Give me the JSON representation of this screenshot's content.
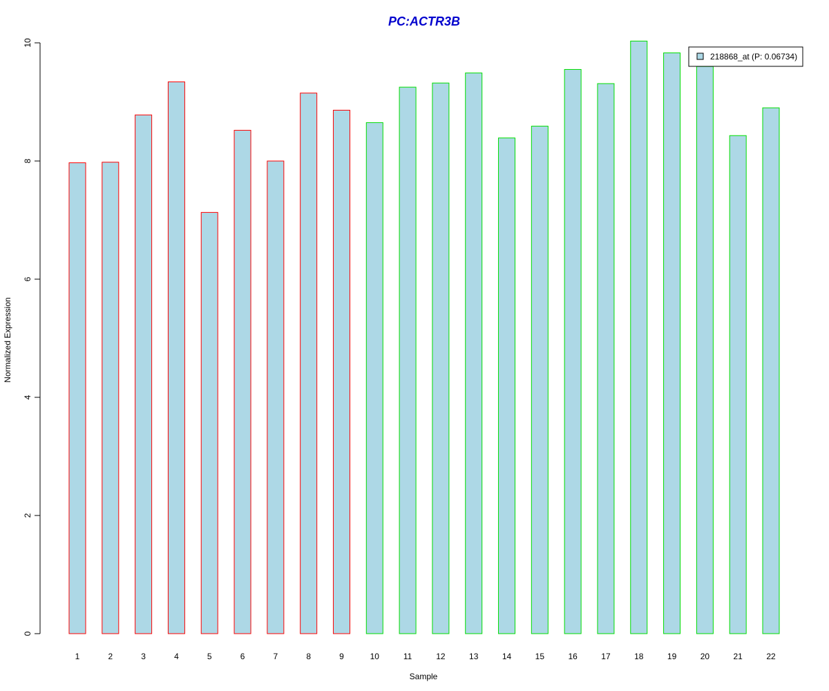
{
  "chart_data": {
    "type": "bar",
    "title": "PC:ACTR3B",
    "xlabel": "Sample",
    "ylabel": "Normalized Expression",
    "categories": [
      "1",
      "2",
      "3",
      "4",
      "5",
      "6",
      "7",
      "8",
      "9",
      "10",
      "11",
      "12",
      "13",
      "14",
      "15",
      "16",
      "17",
      "18",
      "19",
      "20",
      "21",
      "22"
    ],
    "values": [
      7.97,
      7.98,
      8.78,
      9.34,
      7.13,
      8.52,
      8.0,
      9.15,
      8.86,
      8.65,
      9.25,
      9.32,
      9.49,
      8.39,
      8.59,
      9.55,
      9.31,
      10.03,
      9.83,
      9.6,
      8.43,
      8.9
    ],
    "groups": [
      "red",
      "red",
      "red",
      "red",
      "red",
      "red",
      "red",
      "red",
      "red",
      "green",
      "green",
      "green",
      "green",
      "green",
      "green",
      "green",
      "green",
      "green",
      "green",
      "green",
      "green",
      "green"
    ],
    "ylim": [
      0,
      10
    ],
    "yticks": [
      0,
      2,
      4,
      6,
      8,
      10
    ],
    "grid": false,
    "legend": {
      "position": "top-right",
      "entries": [
        {
          "label": "218868_at (P: 0.06734)",
          "color": "#add8e6"
        }
      ]
    },
    "colors": {
      "title": "#0000cd",
      "bar_fill": "#add8e6",
      "red_border": "#ff0000",
      "green_border": "#00dd00"
    }
  }
}
